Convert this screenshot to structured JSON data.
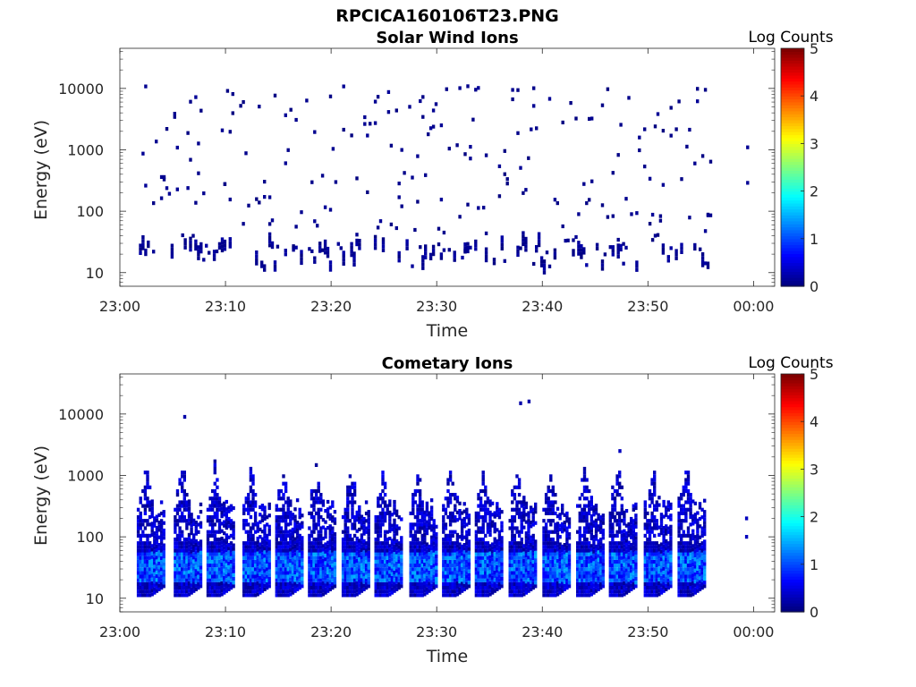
{
  "figure": {
    "title": "RPCICA160106T23.PNG"
  },
  "chart_data": [
    {
      "type": "heatmap",
      "title": "Solar Wind Ions",
      "xlabel": "Time",
      "ylabel": "Energy (eV)",
      "x_ticks": [
        "23:00",
        "23:10",
        "23:20",
        "23:30",
        "23:40",
        "23:50",
        "00:00"
      ],
      "xlim_minutes": [
        0,
        62
      ],
      "y_scale": "log",
      "ylim": [
        6,
        45000
      ],
      "y_ticks": [
        "10",
        "100",
        "1000",
        "10000"
      ],
      "colorbar": {
        "label": "Log Counts",
        "ticks": [
          "0",
          "1",
          "2",
          "3",
          "4",
          "5"
        ],
        "range": [
          0,
          5
        ],
        "colormap": "jet"
      },
      "data_span_minutes": [
        1.8,
        56.2
      ],
      "features": "Sparse single-count speckle from ~20 eV to ~10000 eV, with denser low-level counts near 10-40 eV; isolated point near 23:59 at ~1000 eV and ~300 eV",
      "max_log_counts": 0.2
    },
    {
      "type": "heatmap",
      "title": "Cometary Ions",
      "xlabel": "Time",
      "ylabel": "Energy (eV)",
      "x_ticks": [
        "23:00",
        "23:10",
        "23:20",
        "23:30",
        "23:40",
        "23:50",
        "00:00"
      ],
      "xlim_minutes": [
        0,
        62
      ],
      "y_scale": "log",
      "ylim": [
        6,
        45000
      ],
      "y_ticks": [
        "10",
        "100",
        "1000",
        "10000"
      ],
      "colorbar": {
        "label": "Log Counts",
        "ticks": [
          "0",
          "1",
          "2",
          "3",
          "4",
          "5"
        ],
        "range": [
          0,
          5
        ],
        "colormap": "jet"
      },
      "data_span_minutes": [
        1.8,
        56.2
      ],
      "burst_centers_minutes": [
        2.8,
        6.3,
        9.4,
        12.8,
        15.9,
        19.0,
        22.2,
        25.3,
        28.6,
        31.7,
        34.8,
        38.0,
        41.2,
        44.4,
        47.5,
        50.8,
        54.0
      ],
      "features": "Periodic bursts (~3.2 min period) extending from ~10 eV up to ~300-1500 eV; highest counts (log ~1-1.5) near 20-40 eV; sparse points near 23:06 (~9000 eV) and 23:38 (~15000 eV)",
      "max_log_counts": 1.5
    }
  ]
}
